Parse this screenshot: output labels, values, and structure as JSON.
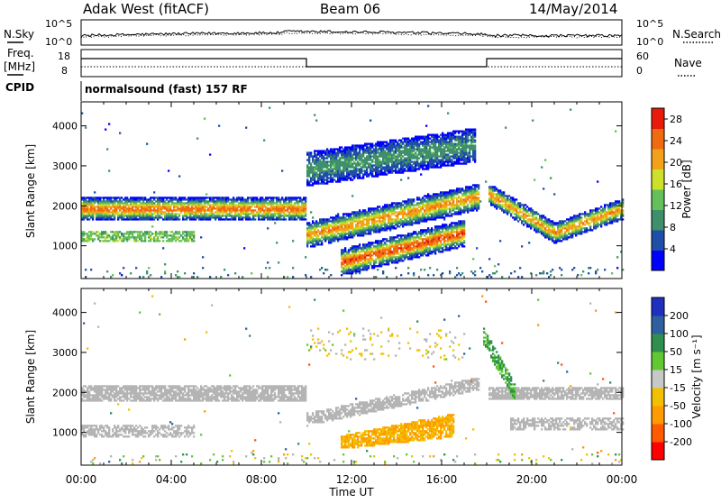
{
  "header": {
    "station": "Adak West (fitACF)",
    "beam": "Beam 06",
    "date": "14/May/2014"
  },
  "noise_panel": {
    "left_label": "N.Sky",
    "right_label": "N.Search",
    "left_ticks": [
      "10^5",
      "10^0"
    ],
    "right_ticks": [
      "10^5",
      "10^0"
    ]
  },
  "freq_panel": {
    "left_label_1": "Freq.",
    "left_label_2": "[MHz]",
    "right_label": "Nave",
    "left_ticks": [
      "18",
      "8"
    ],
    "right_ticks": [
      "60",
      "0"
    ]
  },
  "cpid": {
    "label": "CPID",
    "text": "normalsound (fast) 157 RF"
  },
  "colors": {
    "power_scale": [
      "#0000ff",
      "#1f4ea8",
      "#3f8f6b",
      "#63c05a",
      "#cfe02a",
      "#f2a21a",
      "#f06a12",
      "#e81a0a"
    ],
    "velocity_scale": [
      "#ff0000",
      "#ff5a00",
      "#ff9a00",
      "#f2c000",
      "#c8c8c8",
      "#60c830",
      "#2f8f4f",
      "#2f5f9f",
      "#1f2fbf"
    ],
    "ground_scatter": "#b4b4b4"
  },
  "chart_data": [
    {
      "type": "heatmap",
      "panel": "power",
      "xlabel": "",
      "ylabel": "Slant Range [km]",
      "xlim": [
        "00:00",
        "24:00"
      ],
      "ylim": [
        180,
        4600
      ],
      "yticks": [
        1000,
        2000,
        3000,
        4000
      ],
      "colorbar": {
        "label": "Power [dB]",
        "ticks": [
          "4",
          "8",
          "12",
          "16",
          "20",
          "24",
          "28"
        ],
        "range": [
          0,
          30
        ]
      },
      "features": [
        {
          "t_start": 0.0,
          "t_end": 10.0,
          "range_center": 1900,
          "width": 220,
          "peak": 24
        },
        {
          "t_start": 10.0,
          "t_end": 17.6,
          "range_center": "1250->2200",
          "width": 250,
          "peak": 22
        },
        {
          "t_start": 11.5,
          "t_end": 17.0,
          "range_center": "560->1300",
          "width": 250,
          "peak": 26
        },
        {
          "t_start": 18.0,
          "t_end": 24.0,
          "range_center": "2300->1300->1900",
          "width": 200,
          "peak": 22
        },
        {
          "t_start": 10.0,
          "t_end": 17.5,
          "range_center": "2900->3500",
          "width": 400,
          "peak": 10
        }
      ]
    },
    {
      "type": "heatmap",
      "panel": "velocity",
      "xlabel": "Time UT",
      "ylabel": "Slant Range [km]",
      "xlim": [
        "00:00",
        "24:00"
      ],
      "ylim": [
        180,
        4600
      ],
      "xticks": [
        "00:00",
        "04:00",
        "08:00",
        "12:00",
        "16:00",
        "20:00",
        "00:00"
      ],
      "yticks": [
        1000,
        2000,
        3000,
        4000
      ],
      "colorbar": {
        "label": "Velocity [m s⁻¹]",
        "ticks": [
          "200",
          "100",
          "50",
          "15",
          "-15",
          "-50",
          "-100",
          "-200"
        ],
        "range": [
          -250,
          250
        ]
      },
      "features": [
        {
          "t_start": 0.0,
          "t_end": 10.0,
          "range_center": 1950,
          "width": 350,
          "velocity": 0,
          "note": "ground scatter"
        },
        {
          "t_start": 12.0,
          "t_end": 16.5,
          "range_center": 1000,
          "width": 350,
          "velocity": -60
        },
        {
          "t_start": 17.8,
          "t_end": 19.0,
          "range_center": "3400->2000",
          "width": 300,
          "velocity": 70
        },
        {
          "t_start": 18.0,
          "t_end": 24.0,
          "range_center": 1950,
          "width": 300,
          "velocity": 0,
          "note": "ground scatter"
        }
      ]
    }
  ]
}
